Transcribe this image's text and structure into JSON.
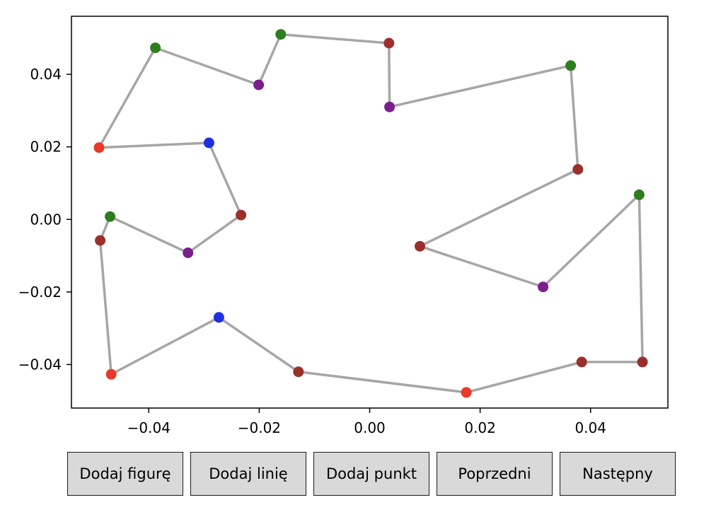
{
  "chart_data": {
    "type": "scatter",
    "xlim": [
      -0.054,
      0.054
    ],
    "ylim": [
      -0.052,
      0.056
    ],
    "xticks": [
      -0.04,
      -0.02,
      0.0,
      0.02,
      0.04
    ],
    "yticks": [
      -0.04,
      -0.02,
      0.0,
      0.02,
      0.04
    ],
    "xtick_labels": [
      "−0.04",
      "−0.02",
      "0.00",
      "0.02",
      "0.04"
    ],
    "ytick_labels": [
      "−0.04",
      "−0.02",
      "0.00",
      "0.02",
      "0.04"
    ],
    "grid": false,
    "line_color": "#a6a6a6",
    "polylines": [
      [
        [
          -0.049,
          0.0198
        ],
        [
          -0.0388,
          0.0473
        ],
        [
          -0.0201,
          0.0371
        ],
        [
          -0.0161,
          0.051
        ],
        [
          0.0035,
          0.0486
        ],
        [
          0.0036,
          0.031
        ],
        [
          0.0364,
          0.0424
        ],
        [
          0.0377,
          0.0138
        ],
        [
          0.0091,
          -0.0074
        ],
        [
          0.0314,
          -0.0186
        ],
        [
          0.0488,
          0.0068
        ],
        [
          0.0494,
          -0.0393
        ],
        [
          0.0384,
          -0.0393
        ],
        [
          0.0175,
          -0.0477
        ],
        [
          -0.0129,
          -0.042
        ],
        [
          -0.0273,
          -0.027
        ],
        [
          -0.0468,
          -0.0427
        ],
        [
          -0.0488,
          -0.0058
        ],
        [
          -0.047,
          0.0008
        ],
        [
          -0.0329,
          -0.0092
        ],
        [
          -0.0233,
          0.0012
        ],
        [
          -0.0291,
          0.0211
        ],
        [
          -0.049,
          0.0198
        ]
      ]
    ],
    "points": [
      {
        "x": -0.049,
        "y": 0.0198,
        "color": "#e8392a"
      },
      {
        "x": -0.0388,
        "y": 0.0473,
        "color": "#2e7d1e"
      },
      {
        "x": -0.0201,
        "y": 0.0371,
        "color": "#7b1f8c"
      },
      {
        "x": -0.0161,
        "y": 0.051,
        "color": "#2e7d1e"
      },
      {
        "x": 0.0035,
        "y": 0.0486,
        "color": "#9b2f2c"
      },
      {
        "x": 0.0036,
        "y": 0.031,
        "color": "#7b1f8c"
      },
      {
        "x": 0.0364,
        "y": 0.0424,
        "color": "#2e7d1e"
      },
      {
        "x": 0.0377,
        "y": 0.0138,
        "color": "#9b2f2c"
      },
      {
        "x": 0.0091,
        "y": -0.0074,
        "color": "#9b2f2c"
      },
      {
        "x": 0.0314,
        "y": -0.0186,
        "color": "#7b1f8c"
      },
      {
        "x": 0.0488,
        "y": 0.0068,
        "color": "#2e7d1e"
      },
      {
        "x": 0.0494,
        "y": -0.0393,
        "color": "#9b2f2c"
      },
      {
        "x": 0.0384,
        "y": -0.0393,
        "color": "#9b2f2c"
      },
      {
        "x": 0.0175,
        "y": -0.0477,
        "color": "#e8392a"
      },
      {
        "x": -0.0129,
        "y": -0.042,
        "color": "#9b2f2c"
      },
      {
        "x": -0.0273,
        "y": -0.027,
        "color": "#1f2fe0"
      },
      {
        "x": -0.0468,
        "y": -0.0427,
        "color": "#e8392a"
      },
      {
        "x": -0.0488,
        "y": -0.0058,
        "color": "#9b2f2c"
      },
      {
        "x": -0.047,
        "y": 0.0008,
        "color": "#2e7d1e"
      },
      {
        "x": -0.0329,
        "y": -0.0092,
        "color": "#7b1f8c"
      },
      {
        "x": -0.0233,
        "y": 0.0012,
        "color": "#9b2f2c"
      },
      {
        "x": -0.0291,
        "y": 0.0211,
        "color": "#1f2fe0"
      }
    ]
  },
  "buttons": {
    "add_figure": "Dodaj figurę",
    "add_line": "Dodaj linię",
    "add_point": "Dodaj punkt",
    "previous": "Poprzedni",
    "next": "Następny"
  }
}
